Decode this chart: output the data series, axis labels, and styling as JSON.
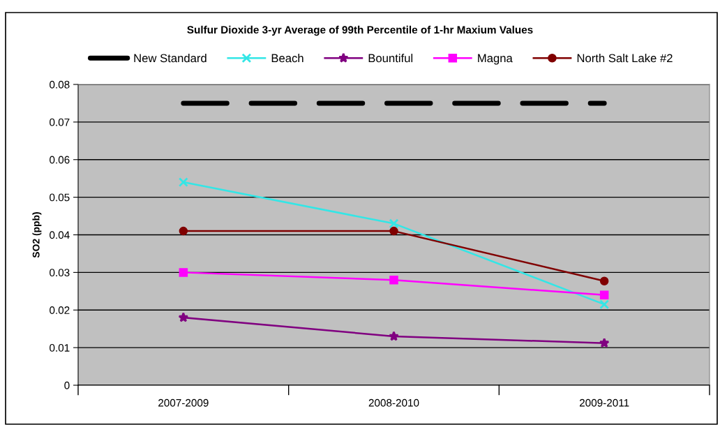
{
  "chart_data": {
    "type": "line",
    "title": "Sulfur Dioxide 3-yr Average of 99th Percentile of 1-hr Maxium Values",
    "ylabel": "SO2 (ppb)",
    "categories": [
      "2007-2009",
      "2008-2010",
      "2009-2011"
    ],
    "series": [
      {
        "name": "New Standard",
        "color": "#000000",
        "values": [
          0.075,
          0.075,
          0.075
        ],
        "line_style": "dashed",
        "marker": "none"
      },
      {
        "name": "Beach",
        "color": "#33e6e6",
        "values": [
          0.054,
          0.043,
          0.0215
        ],
        "marker": "cross"
      },
      {
        "name": "Bountiful",
        "color": "#800080",
        "values": [
          0.018,
          0.013,
          0.0112
        ],
        "marker": "star"
      },
      {
        "name": "Magna",
        "color": "#ff00ff",
        "values": [
          0.03,
          0.028,
          0.024
        ],
        "marker": "square"
      },
      {
        "name": "North Salt Lake #2",
        "color": "#800000",
        "values": [
          0.041,
          0.041,
          0.0277
        ],
        "marker": "circle"
      }
    ],
    "ylim": [
      0,
      0.08
    ],
    "yticks": [
      0,
      0.01,
      0.02,
      0.03,
      0.04,
      0.05,
      0.06,
      0.07,
      0.08
    ],
    "grid": "y",
    "legend": "top"
  }
}
